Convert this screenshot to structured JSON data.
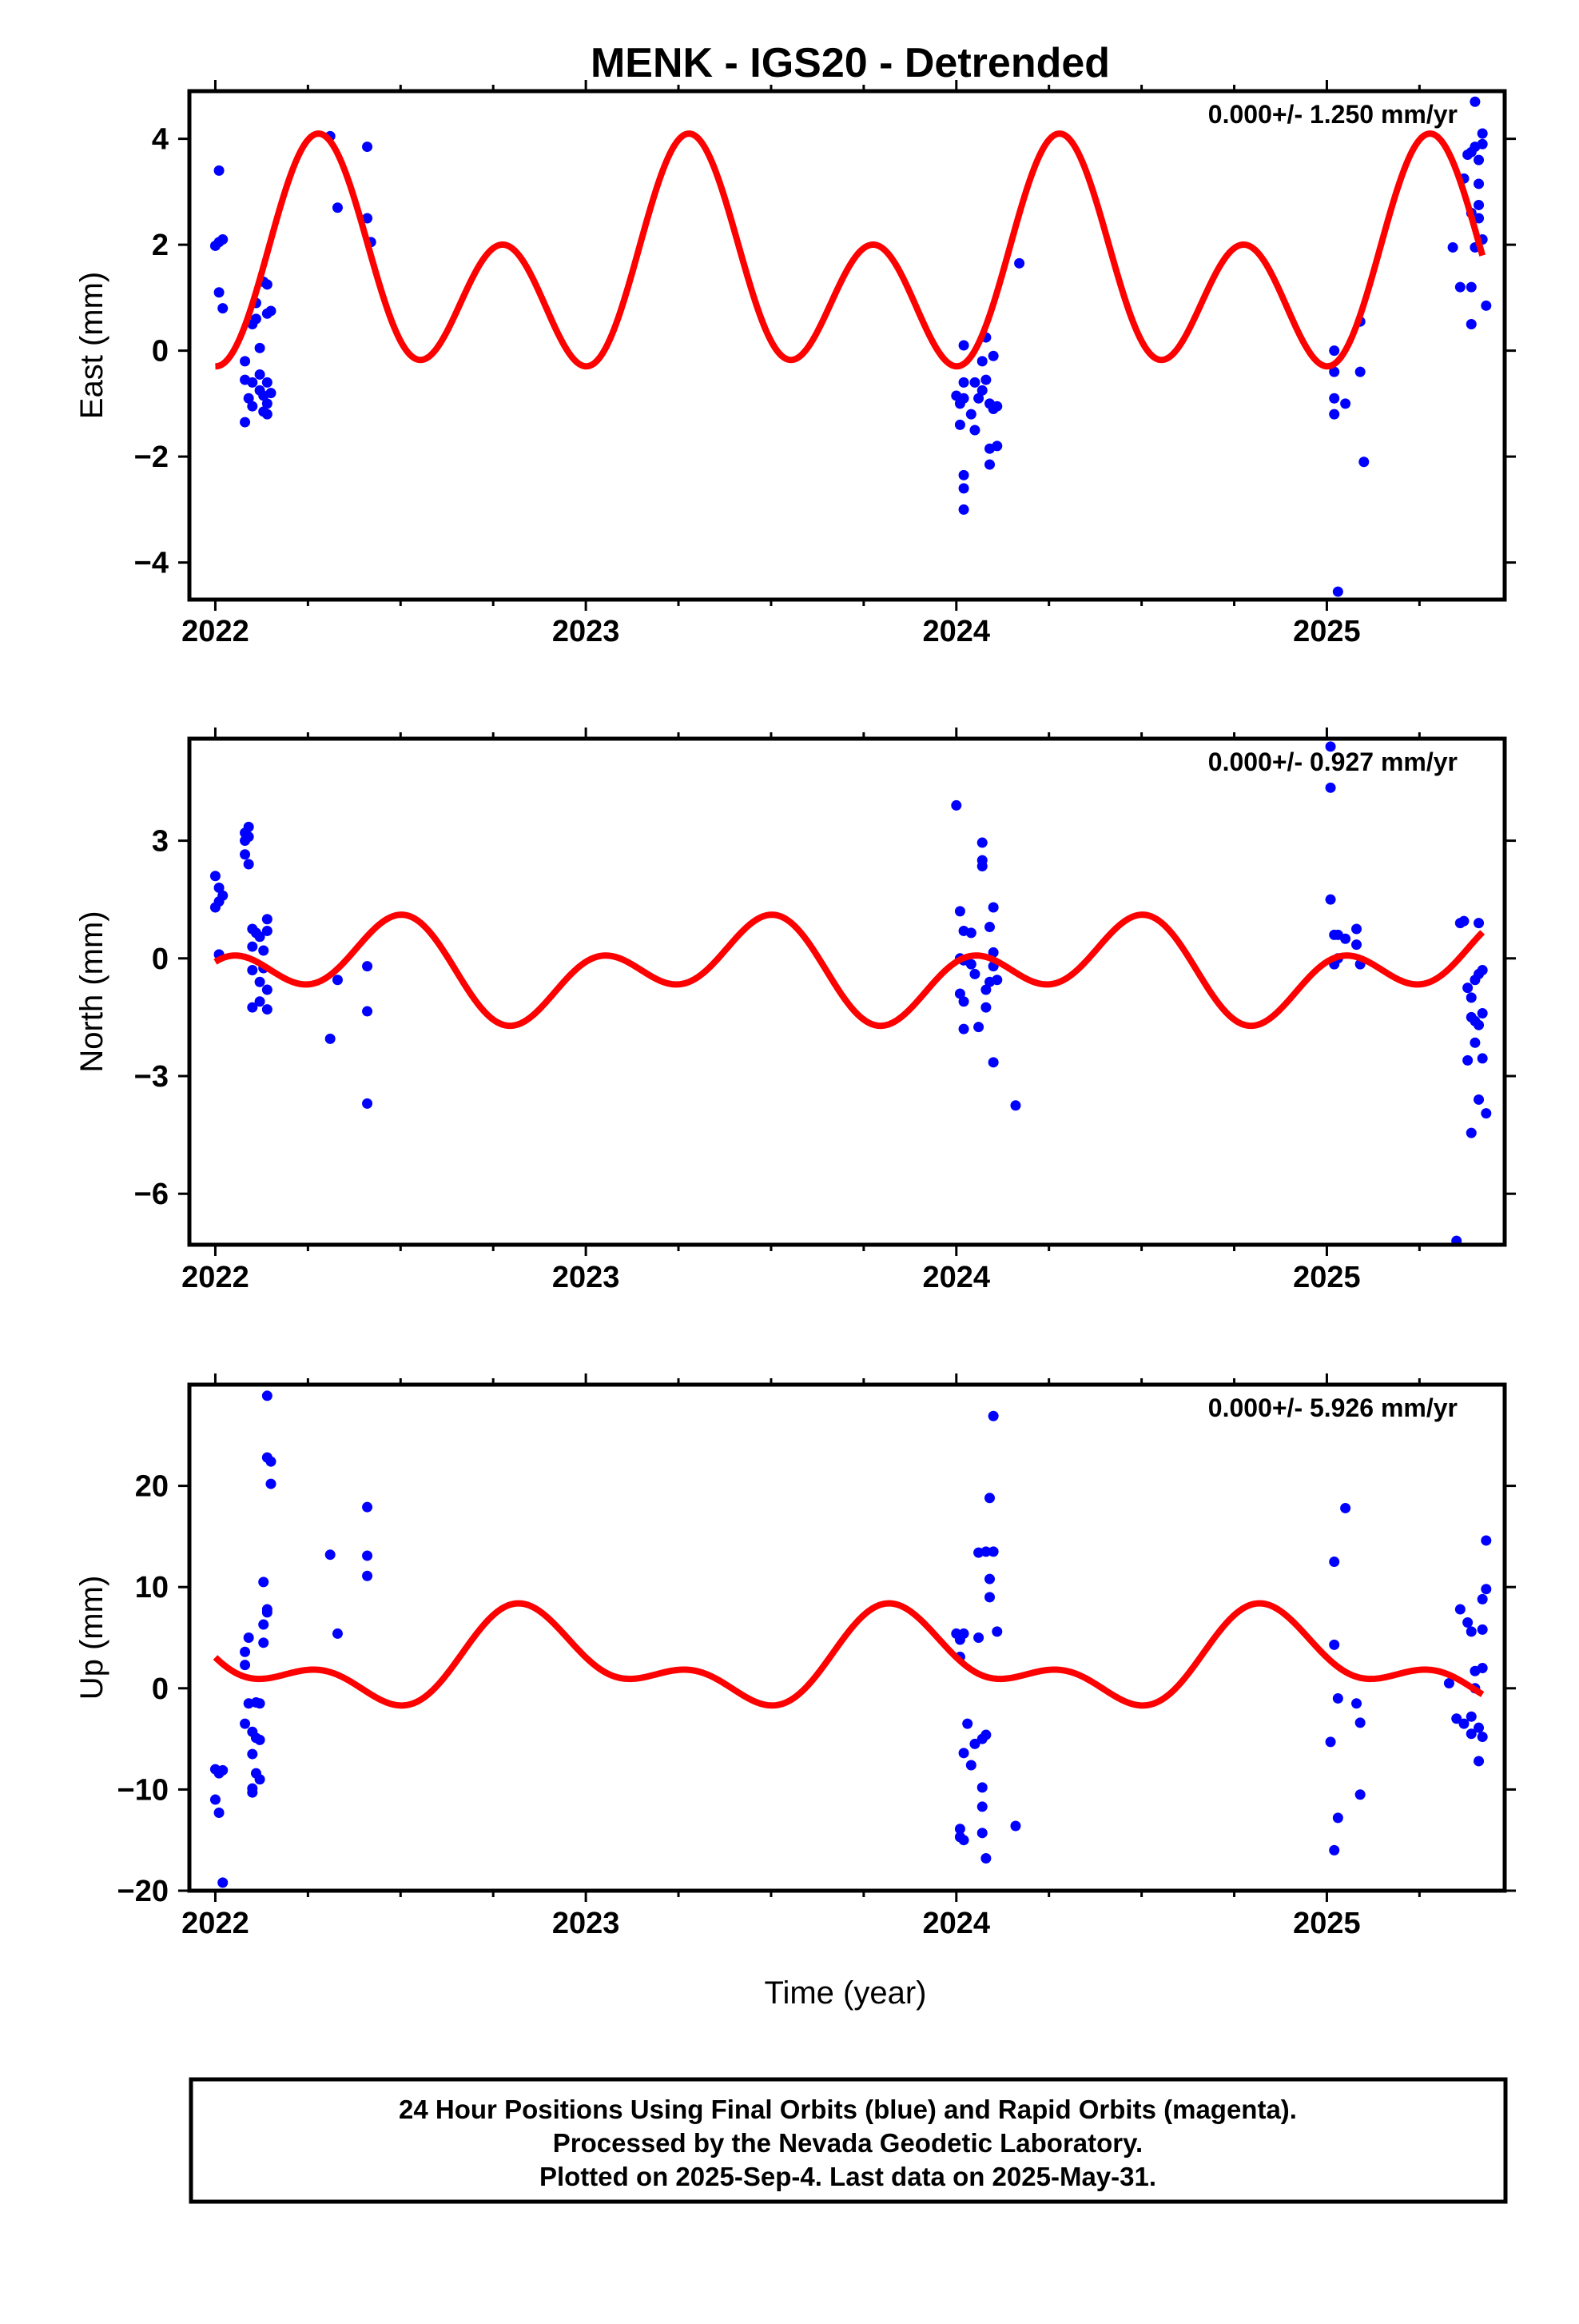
{
  "title": "MENK - IGS20 - Detrended",
  "xlabel": "Time (year)",
  "footer": [
    "24 Hour Positions Using Final Orbits (blue) and Rapid Orbits (magenta).",
    "Processed by the Nevada Geodetic Laboratory.",
    "Plotted on 2025-Sep-4. Last data on 2025-May-31."
  ],
  "colors": {
    "points": "#0000ff",
    "model": "#ff0000",
    "frame": "#000000"
  },
  "chart_data": [
    {
      "type": "scatter",
      "name": "east",
      "ylabel": "East (mm)",
      "rate_label": "0.000+/- 1.250 mm/yr",
      "xlim": [
        2021.93,
        2025.48
      ],
      "ylim": [
        -4.7,
        4.9
      ],
      "x_tick_labels": [
        "2022",
        "2023",
        "2024",
        "2025"
      ],
      "y_ticks": [
        -4,
        -2,
        0,
        2,
        4
      ],
      "y_tick_labels": [
        "−4",
        "−2",
        "0",
        "2",
        "4"
      ],
      "model": {
        "mean": 1.45,
        "annual_amp": 1.05,
        "annual_phase": 1.8,
        "semi_amp": 1.6,
        "semi_phase": -2.8
      },
      "points": [
        [
          2022.01,
          3.4
        ],
        [
          2022.01,
          2.05
        ],
        [
          2022.0,
          1.98
        ],
        [
          2022.02,
          2.1
        ],
        [
          2022.01,
          1.1
        ],
        [
          2022.02,
          0.8
        ],
        [
          2022.08,
          -0.2
        ],
        [
          2022.08,
          -0.55
        ],
        [
          2022.09,
          -0.9
        ],
        [
          2022.08,
          -1.35
        ],
        [
          2022.1,
          -0.6
        ],
        [
          2022.1,
          -1.05
        ],
        [
          2022.1,
          0.5
        ],
        [
          2022.11,
          0.9
        ],
        [
          2022.11,
          0.6
        ],
        [
          2022.12,
          0.05
        ],
        [
          2022.12,
          -0.45
        ],
        [
          2022.12,
          -0.75
        ],
        [
          2022.13,
          -1.15
        ],
        [
          2022.13,
          -0.85
        ],
        [
          2022.13,
          1.3
        ],
        [
          2022.14,
          0.7
        ],
        [
          2022.14,
          -0.6
        ],
        [
          2022.14,
          -1.0
        ],
        [
          2022.15,
          -0.8
        ],
        [
          2022.14,
          -1.2
        ],
        [
          2022.14,
          1.25
        ],
        [
          2022.15,
          0.75
        ],
        [
          2022.31,
          4.05
        ],
        [
          2022.33,
          2.7
        ],
        [
          2022.41,
          3.85
        ],
        [
          2022.41,
          2.5
        ],
        [
          2022.42,
          2.05
        ],
        [
          2024.0,
          -0.85
        ],
        [
          2024.01,
          -1.0
        ],
        [
          2024.01,
          -1.4
        ],
        [
          2024.02,
          0.1
        ],
        [
          2024.02,
          -0.6
        ],
        [
          2024.02,
          -0.9
        ],
        [
          2024.02,
          -2.35
        ],
        [
          2024.02,
          -2.6
        ],
        [
          2024.02,
          -3.0
        ],
        [
          2024.04,
          -1.2
        ],
        [
          2024.05,
          -0.6
        ],
        [
          2024.05,
          -1.5
        ],
        [
          2024.06,
          -0.9
        ],
        [
          2024.07,
          -0.2
        ],
        [
          2024.07,
          -0.75
        ],
        [
          2024.08,
          -0.55
        ],
        [
          2024.08,
          0.25
        ],
        [
          2024.09,
          -1.0
        ],
        [
          2024.09,
          -1.85
        ],
        [
          2024.09,
          -2.15
        ],
        [
          2024.1,
          -0.1
        ],
        [
          2024.1,
          -1.1
        ],
        [
          2024.11,
          -1.05
        ],
        [
          2024.11,
          -1.8
        ],
        [
          2024.17,
          1.65
        ],
        [
          2025.02,
          0.0
        ],
        [
          2025.02,
          -0.4
        ],
        [
          2025.02,
          -0.9
        ],
        [
          2025.02,
          -1.2
        ],
        [
          2025.03,
          -4.55
        ],
        [
          2025.05,
          -1.0
        ],
        [
          2025.09,
          0.55
        ],
        [
          2025.09,
          -0.4
        ],
        [
          2025.1,
          -2.1
        ],
        [
          2025.34,
          1.95
        ],
        [
          2025.36,
          1.2
        ],
        [
          2025.37,
          3.25
        ],
        [
          2025.38,
          3.7
        ],
        [
          2025.39,
          2.6
        ],
        [
          2025.39,
          1.2
        ],
        [
          2025.39,
          0.5
        ],
        [
          2025.4,
          4.7
        ],
        [
          2025.4,
          3.85
        ],
        [
          2025.41,
          3.6
        ],
        [
          2025.41,
          3.15
        ],
        [
          2025.41,
          2.75
        ],
        [
          2025.41,
          2.5
        ],
        [
          2025.42,
          4.1
        ],
        [
          2025.42,
          3.9
        ],
        [
          2025.42,
          2.1
        ],
        [
          2025.43,
          0.85
        ],
        [
          2025.39,
          3.75
        ],
        [
          2025.4,
          1.95
        ]
      ]
    },
    {
      "type": "scatter",
      "name": "north",
      "ylabel": "North (mm)",
      "rate_label": "0.000+/- 0.927 mm/yr",
      "xlim": [
        2021.93,
        2025.48
      ],
      "ylim": [
        -7.3,
        5.6
      ],
      "x_tick_labels": [
        "2022",
        "2023",
        "2024",
        "2025"
      ],
      "y_ticks": [
        -6,
        -3,
        0,
        3
      ],
      "y_tick_labels": [
        "−6",
        "−3",
        "0",
        "3"
      ],
      "model": {
        "mean": -0.3,
        "annual_amp": 0.75,
        "annual_phase": 2.5,
        "semi_amp": 0.85,
        "semi_phase": 0.3
      },
      "points": [
        [
          2022.0,
          2.1
        ],
        [
          2022.01,
          1.8
        ],
        [
          2022.01,
          1.45
        ],
        [
          2022.0,
          1.3
        ],
        [
          2022.02,
          1.6
        ],
        [
          2022.01,
          0.1
        ],
        [
          2022.08,
          3.2
        ],
        [
          2022.08,
          3.0
        ],
        [
          2022.08,
          2.65
        ],
        [
          2022.09,
          3.35
        ],
        [
          2022.09,
          3.1
        ],
        [
          2022.09,
          2.4
        ],
        [
          2022.1,
          0.75
        ],
        [
          2022.1,
          0.3
        ],
        [
          2022.1,
          -0.3
        ],
        [
          2022.1,
          -1.25
        ],
        [
          2022.11,
          0.65
        ],
        [
          2022.12,
          0.55
        ],
        [
          2022.12,
          -0.6
        ],
        [
          2022.12,
          -1.1
        ],
        [
          2022.13,
          0.2
        ],
        [
          2022.13,
          -0.25
        ],
        [
          2022.14,
          1.0
        ],
        [
          2022.14,
          0.7
        ],
        [
          2022.14,
          -0.8
        ],
        [
          2022.14,
          -1.3
        ],
        [
          2022.31,
          -2.05
        ],
        [
          2022.33,
          -0.55
        ],
        [
          2022.41,
          -0.2
        ],
        [
          2022.41,
          -1.35
        ],
        [
          2022.41,
          -3.7
        ],
        [
          2024.0,
          3.9
        ],
        [
          2024.01,
          1.2
        ],
        [
          2024.01,
          0.0
        ],
        [
          2024.01,
          -0.9
        ],
        [
          2024.02,
          -1.1
        ],
        [
          2024.02,
          -1.8
        ],
        [
          2024.02,
          0.7
        ],
        [
          2024.02,
          -0.05
        ],
        [
          2024.04,
          0.65
        ],
        [
          2024.04,
          -0.15
        ],
        [
          2024.05,
          -0.4
        ],
        [
          2024.06,
          -1.75
        ],
        [
          2024.07,
          2.95
        ],
        [
          2024.07,
          2.5
        ],
        [
          2024.07,
          2.35
        ],
        [
          2024.08,
          -0.8
        ],
        [
          2024.08,
          -1.25
        ],
        [
          2024.09,
          0.8
        ],
        [
          2024.09,
          -0.6
        ],
        [
          2024.1,
          1.3
        ],
        [
          2024.1,
          0.15
        ],
        [
          2024.1,
          -0.2
        ],
        [
          2024.1,
          -2.65
        ],
        [
          2024.11,
          -0.55
        ],
        [
          2024.16,
          -3.75
        ],
        [
          2025.01,
          5.4
        ],
        [
          2025.01,
          4.35
        ],
        [
          2025.01,
          1.5
        ],
        [
          2025.02,
          0.6
        ],
        [
          2025.02,
          -0.15
        ],
        [
          2025.03,
          0.0
        ],
        [
          2025.03,
          0.6
        ],
        [
          2025.05,
          0.5
        ],
        [
          2025.08,
          0.75
        ],
        [
          2025.08,
          0.35
        ],
        [
          2025.09,
          -0.15
        ],
        [
          2025.35,
          -7.2
        ],
        [
          2025.36,
          0.9
        ],
        [
          2025.37,
          0.95
        ],
        [
          2025.38,
          -2.6
        ],
        [
          2025.38,
          -0.75
        ],
        [
          2025.39,
          -1.5
        ],
        [
          2025.39,
          -1.0
        ],
        [
          2025.39,
          -4.45
        ],
        [
          2025.4,
          -0.55
        ],
        [
          2025.4,
          -1.6
        ],
        [
          2025.4,
          -2.15
        ],
        [
          2025.41,
          0.9
        ],
        [
          2025.41,
          -0.4
        ],
        [
          2025.41,
          -1.7
        ],
        [
          2025.41,
          -3.6
        ],
        [
          2025.42,
          -2.55
        ],
        [
          2025.42,
          -0.3
        ],
        [
          2025.42,
          -1.4
        ],
        [
          2025.43,
          -3.95
        ]
      ]
    },
    {
      "type": "scatter",
      "name": "up",
      "ylabel": "Up (mm)",
      "rate_label": "0.000+/- 5.926 mm/yr",
      "xlim": [
        2021.93,
        2025.48
      ],
      "ylim": [
        -20.0,
        30.0
      ],
      "x_tick_labels": [
        "2022",
        "2023",
        "2024",
        "2025"
      ],
      "y_ticks": [
        -20,
        -10,
        0,
        10,
        20
      ],
      "y_tick_labels": [
        "−20",
        "−10",
        "0",
        "10",
        "20"
      ],
      "model": {
        "mean": 2.6,
        "annual_amp": 3.6,
        "annual_phase": -0.85,
        "semi_amp": 2.4,
        "semi_phase": -2.5
      },
      "points": [
        [
          2022.0,
          -8.0
        ],
        [
          2022.0,
          -11.0
        ],
        [
          2022.01,
          -8.4
        ],
        [
          2022.01,
          -12.3
        ],
        [
          2022.02,
          -8.1
        ],
        [
          2022.02,
          -19.2
        ],
        [
          2022.08,
          -3.5
        ],
        [
          2022.08,
          2.3
        ],
        [
          2022.08,
          3.6
        ],
        [
          2022.09,
          5.0
        ],
        [
          2022.09,
          -1.5
        ],
        [
          2022.1,
          -4.3
        ],
        [
          2022.1,
          -6.5
        ],
        [
          2022.1,
          -9.9
        ],
        [
          2022.1,
          -10.3
        ],
        [
          2022.11,
          -1.4
        ],
        [
          2022.11,
          -8.4
        ],
        [
          2022.11,
          -4.9
        ],
        [
          2022.12,
          -1.5
        ],
        [
          2022.12,
          -9.0
        ],
        [
          2022.12,
          -5.1
        ],
        [
          2022.13,
          4.5
        ],
        [
          2022.13,
          6.3
        ],
        [
          2022.13,
          10.5
        ],
        [
          2022.14,
          7.5
        ],
        [
          2022.14,
          7.8
        ],
        [
          2022.14,
          22.8
        ],
        [
          2022.14,
          28.9
        ],
        [
          2022.15,
          22.4
        ],
        [
          2022.15,
          20.2
        ],
        [
          2022.31,
          13.2
        ],
        [
          2022.33,
          5.4
        ],
        [
          2022.41,
          17.9
        ],
        [
          2022.41,
          13.1
        ],
        [
          2022.41,
          11.1
        ],
        [
          2024.0,
          5.4
        ],
        [
          2024.01,
          4.8
        ],
        [
          2024.01,
          3.1
        ],
        [
          2024.01,
          -13.9
        ],
        [
          2024.01,
          -14.7
        ],
        [
          2024.02,
          5.4
        ],
        [
          2024.02,
          -15.0
        ],
        [
          2024.02,
          -6.4
        ],
        [
          2024.03,
          -3.5
        ],
        [
          2024.04,
          -7.6
        ],
        [
          2024.05,
          -5.5
        ],
        [
          2024.06,
          13.4
        ],
        [
          2024.06,
          5.0
        ],
        [
          2024.07,
          -5.0
        ],
        [
          2024.07,
          -9.8
        ],
        [
          2024.07,
          -11.7
        ],
        [
          2024.07,
          -14.3
        ],
        [
          2024.08,
          -16.8
        ],
        [
          2024.08,
          13.5
        ],
        [
          2024.08,
          -4.6
        ],
        [
          2024.09,
          10.8
        ],
        [
          2024.09,
          9.0
        ],
        [
          2024.09,
          18.8
        ],
        [
          2024.1,
          26.9
        ],
        [
          2024.1,
          13.5
        ],
        [
          2024.11,
          5.6
        ],
        [
          2024.16,
          -13.6
        ],
        [
          2025.01,
          -5.3
        ],
        [
          2025.02,
          -16.0
        ],
        [
          2025.02,
          12.5
        ],
        [
          2025.02,
          4.3
        ],
        [
          2025.03,
          -1.0
        ],
        [
          2025.03,
          -12.8
        ],
        [
          2025.05,
          17.8
        ],
        [
          2025.08,
          -1.5
        ],
        [
          2025.09,
          -3.4
        ],
        [
          2025.09,
          -10.5
        ],
        [
          2025.33,
          0.5
        ],
        [
          2025.35,
          -3.0
        ],
        [
          2025.36,
          7.8
        ],
        [
          2025.37,
          -3.5
        ],
        [
          2025.38,
          6.5
        ],
        [
          2025.39,
          -4.5
        ],
        [
          2025.39,
          5.6
        ],
        [
          2025.39,
          -2.8
        ],
        [
          2025.4,
          1.7
        ],
        [
          2025.4,
          0.0
        ],
        [
          2025.41,
          -3.9
        ],
        [
          2025.41,
          -7.2
        ],
        [
          2025.42,
          -4.8
        ],
        [
          2025.42,
          8.8
        ],
        [
          2025.42,
          5.8
        ],
        [
          2025.42,
          2.0
        ],
        [
          2025.43,
          9.8
        ],
        [
          2025.43,
          14.6
        ]
      ]
    }
  ]
}
